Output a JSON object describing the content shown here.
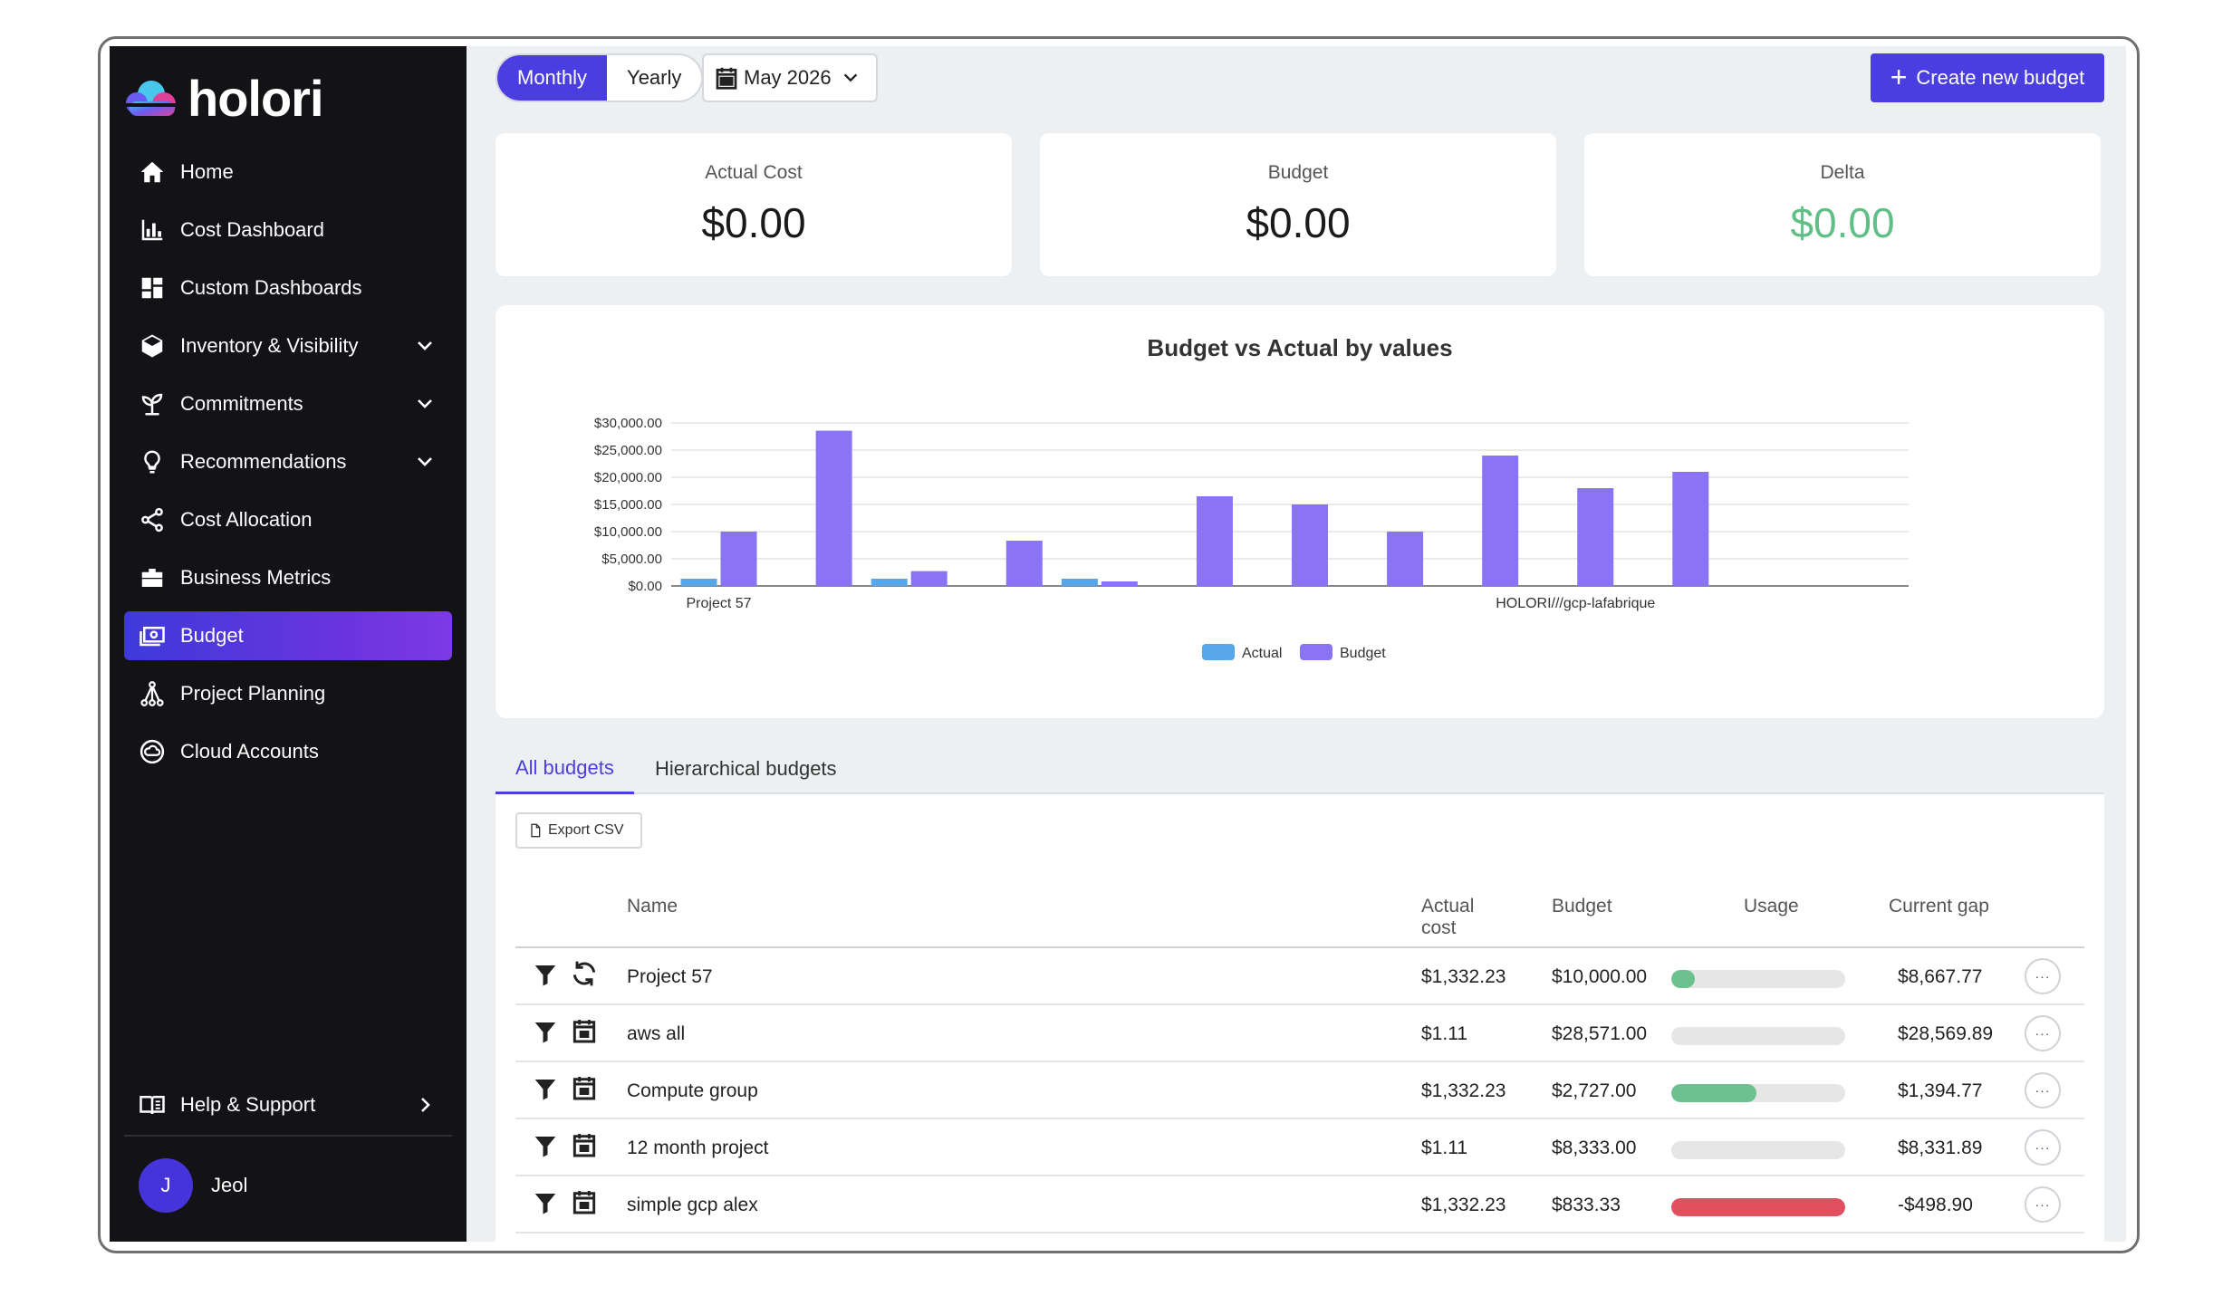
{
  "brand": {
    "name": "holori"
  },
  "sidebar": {
    "items": [
      {
        "label": "Home",
        "icon": "home-icon",
        "expandable": false,
        "active": false
      },
      {
        "label": "Cost Dashboard",
        "icon": "bar-chart-icon",
        "expandable": false,
        "active": false
      },
      {
        "label": "Custom Dashboards",
        "icon": "dashboard-grid-icon",
        "expandable": false,
        "active": false
      },
      {
        "label": "Inventory & Visibility",
        "icon": "cube-icon",
        "expandable": true,
        "active": false
      },
      {
        "label": "Commitments",
        "icon": "plant-icon",
        "expandable": true,
        "active": false
      },
      {
        "label": "Recommendations",
        "icon": "lightbulb-icon",
        "expandable": true,
        "active": false
      },
      {
        "label": "Cost Allocation",
        "icon": "share-icon",
        "expandable": false,
        "active": false
      },
      {
        "label": "Business Metrics",
        "icon": "briefcase-icon",
        "expandable": false,
        "active": false
      },
      {
        "label": "Budget",
        "icon": "money-icon",
        "expandable": false,
        "active": true
      },
      {
        "label": "Project Planning",
        "icon": "hierarchy-icon",
        "expandable": false,
        "active": false
      },
      {
        "label": "Cloud Accounts",
        "icon": "cloud-circle-icon",
        "expandable": false,
        "active": false
      }
    ],
    "help": {
      "label": "Help & Support",
      "icon": "book-icon"
    },
    "user": {
      "initial": "J",
      "name": "Jeol"
    }
  },
  "toolbar": {
    "period_options": [
      "Monthly",
      "Yearly"
    ],
    "period_selected": "Monthly",
    "date": "May 2026",
    "create_label": "Create new budget"
  },
  "kpis": [
    {
      "label": "Actual Cost",
      "value": "$0.00"
    },
    {
      "label": "Budget",
      "value": "$0.00"
    },
    {
      "label": "Delta",
      "value": "$0.00",
      "color": "#5fbf84"
    }
  ],
  "chart_data": {
    "type": "bar",
    "title": "Budget vs Actual by values",
    "categories": [
      "Project 57",
      "aws all",
      "Compute group",
      "12 month project",
      "simple gcp alex",
      "",
      "",
      "",
      "",
      "HOLORI///gcp-lafabrique",
      "",
      "",
      ""
    ],
    "visible_category_labels": [
      "Project 57",
      "HOLORI///gcp-lafabrique"
    ],
    "series": [
      {
        "name": "Actual",
        "color": "#56a7ea",
        "values": [
          1332.23,
          0,
          1332.23,
          0,
          1332.23,
          0,
          0,
          0,
          0,
          0,
          0,
          0,
          0
        ]
      },
      {
        "name": "Budget",
        "color": "#8a73f5",
        "values": [
          10000,
          28571,
          2727,
          8333,
          833.33,
          16500,
          15000,
          10000,
          24000,
          18000,
          21000,
          0,
          0
        ]
      }
    ],
    "ylim": [
      0,
      30000
    ],
    "yticks": [
      "$0.00",
      "$5,000.00",
      "$10,000.00",
      "$15,000.00",
      "$20,000.00",
      "$25,000.00",
      "$30,000.00"
    ],
    "ytick_values": [
      0,
      5000,
      10000,
      15000,
      20000,
      25000,
      30000
    ],
    "grid": true,
    "legend_position": "bottom"
  },
  "tabs": [
    {
      "label": "All budgets",
      "active": true
    },
    {
      "label": "Hierarchical budgets",
      "active": false
    }
  ],
  "table": {
    "export_label": "Export CSV",
    "columns": {
      "name": "Name",
      "actual": "Actual\ncost",
      "budget": "Budget",
      "usage": "Usage",
      "gap": "Current gap"
    },
    "rows": [
      {
        "name": "Project 57",
        "actual": "$1,332.23",
        "budget": "$10,000.00",
        "usage": 0.133,
        "usage_color": "#6cc28e",
        "gap": "$8,667.77",
        "type_icon": "refresh-icon"
      },
      {
        "name": "aws all",
        "actual": "$1.11",
        "budget": "$28,571.00",
        "usage": 0,
        "usage_color": "#6cc28e",
        "gap": "$28,569.89",
        "type_icon": "calendar-icon"
      },
      {
        "name": "Compute group",
        "actual": "$1,332.23",
        "budget": "$2,727.00",
        "usage": 0.489,
        "usage_color": "#6cc28e",
        "gap": "$1,394.77",
        "type_icon": "calendar-icon"
      },
      {
        "name": "12 month project",
        "actual": "$1.11",
        "budget": "$8,333.00",
        "usage": 0,
        "usage_color": "#6cc28e",
        "gap": "$8,331.89",
        "type_icon": "calendar-icon"
      },
      {
        "name": "simple gcp alex",
        "actual": "$1,332.23",
        "budget": "$833.33",
        "usage": 1,
        "usage_color": "#e0505e",
        "gap": "-$498.90",
        "type_icon": "calendar-icon"
      }
    ]
  }
}
